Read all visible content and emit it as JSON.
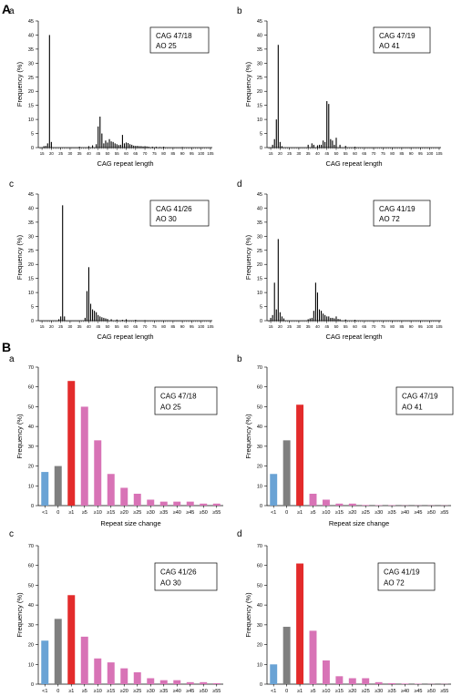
{
  "sections": [
    {
      "label": "A"
    },
    {
      "label": "B"
    }
  ],
  "chart_data": [
    {
      "section": "A",
      "panel": "a",
      "type": "bar",
      "xlabel": "CAG repeat length",
      "ylabel": "Frequency (%)",
      "ylim": [
        0,
        45
      ],
      "yticks": [
        0,
        5,
        10,
        15,
        20,
        25,
        30,
        35,
        40,
        45
      ],
      "xlim": [
        13,
        106
      ],
      "xticks": [
        15,
        20,
        25,
        30,
        35,
        40,
        45,
        50,
        55,
        60,
        65,
        70,
        75,
        80,
        85,
        90,
        95,
        100,
        105
      ],
      "annotation": [
        "CAG 47/18",
        "AO 25"
      ],
      "x": [
        16,
        17,
        18,
        19,
        20,
        35,
        40,
        42,
        44,
        45,
        46,
        47,
        48,
        49,
        50,
        51,
        52,
        53,
        54,
        55,
        56,
        57,
        58,
        59,
        60,
        61,
        62,
        63,
        64,
        65,
        66,
        67,
        68,
        69,
        70,
        71,
        72,
        74,
        76,
        78,
        80,
        90
      ],
      "values": [
        0.5,
        0.6,
        1.5,
        40,
        2,
        0.3,
        0.5,
        0.8,
        1.2,
        7.5,
        11,
        5,
        1.5,
        2.5,
        1.8,
        3,
        2.2,
        2,
        1.5,
        1.2,
        0.9,
        1,
        4.5,
        1.5,
        1.8,
        1.6,
        1.2,
        1,
        0.7,
        0.6,
        0.6,
        0.5,
        0.5,
        0.4,
        0.5,
        0.4,
        0.3,
        0.3,
        0.3,
        0.2,
        0.3,
        0.2
      ]
    },
    {
      "section": "A",
      "panel": "b",
      "type": "bar",
      "xlabel": "CAG repeat length",
      "ylabel": "Frequency (%)",
      "ylim": [
        0,
        45
      ],
      "yticks": [
        0,
        5,
        10,
        15,
        20,
        25,
        30,
        35,
        40,
        45
      ],
      "xlim": [
        13,
        106
      ],
      "xticks": [
        15,
        20,
        25,
        30,
        35,
        40,
        45,
        50,
        55,
        60,
        65,
        70,
        75,
        80,
        85,
        90,
        95,
        100,
        105
      ],
      "annotation": [
        "CAG 47/19",
        "AO 41"
      ],
      "x": [
        16,
        17,
        18,
        19,
        20,
        21,
        35,
        37,
        38,
        40,
        41,
        42,
        43,
        44,
        45,
        46,
        47,
        48,
        49,
        50,
        52,
        55,
        60
      ],
      "values": [
        1,
        3,
        10,
        36.5,
        2,
        0.5,
        1,
        1.5,
        1,
        0.8,
        1,
        1,
        2.5,
        2,
        16.5,
        15.5,
        3,
        2.5,
        1,
        3.5,
        1,
        0.6,
        0.3
      ]
    },
    {
      "section": "A",
      "panel": "c",
      "type": "bar",
      "xlabel": "CAG repeat length",
      "ylabel": "Frequency (%)",
      "ylim": [
        0,
        45
      ],
      "yticks": [
        0,
        5,
        10,
        15,
        20,
        25,
        30,
        35,
        40,
        45
      ],
      "xlim": [
        13,
        106
      ],
      "xticks": [
        15,
        20,
        25,
        30,
        35,
        40,
        45,
        50,
        55,
        60,
        65,
        70,
        75,
        80,
        85,
        90,
        95,
        100,
        105
      ],
      "annotation": [
        "CAG 41/26",
        "AO 30"
      ],
      "x": [
        24,
        25,
        26,
        27,
        38,
        39,
        40,
        41,
        42,
        43,
        44,
        45,
        46,
        47,
        48,
        49,
        50,
        52,
        55,
        58,
        60,
        65,
        70
      ],
      "values": [
        0.5,
        1.5,
        41,
        1.5,
        1,
        10.5,
        19,
        6,
        4,
        3.5,
        3,
        2,
        1.5,
        1.2,
        1,
        0.8,
        0.6,
        0.5,
        0.4,
        0.3,
        0.5,
        0.3,
        0.2
      ]
    },
    {
      "section": "A",
      "panel": "d",
      "type": "bar",
      "xlabel": "CAG repeat length",
      "ylabel": "Frequency (%)",
      "ylim": [
        0,
        45
      ],
      "yticks": [
        0,
        5,
        10,
        15,
        20,
        25,
        30,
        35,
        40,
        45
      ],
      "xlim": [
        13,
        106
      ],
      "xticks": [
        15,
        20,
        25,
        30,
        35,
        40,
        45,
        50,
        55,
        60,
        65,
        70,
        75,
        80,
        85,
        90,
        95,
        100,
        105
      ],
      "annotation": [
        "CAG 41/19",
        "AO 72"
      ],
      "x": [
        15,
        16,
        17,
        18,
        19,
        20,
        21,
        22,
        35,
        36,
        37,
        38,
        39,
        40,
        41,
        42,
        43,
        44,
        45,
        46,
        47,
        48,
        49,
        50,
        51,
        52,
        55,
        60
      ],
      "values": [
        1,
        2,
        13.5,
        4,
        29,
        3,
        1.5,
        0.8,
        0.5,
        0.8,
        1,
        3.5,
        13.5,
        10,
        4,
        3.5,
        2.5,
        2,
        1.5,
        1.5,
        1,
        1,
        0.8,
        1.5,
        0.6,
        0.5,
        0.4,
        0.3
      ]
    },
    {
      "section": "B",
      "panel": "a",
      "type": "bar",
      "xlabel": "Repeat size change",
      "ylabel": "Frequency (%)",
      "ylim": [
        0,
        70
      ],
      "yticks": [
        0,
        10,
        20,
        30,
        40,
        50,
        60,
        70
      ],
      "annotation": [
        "CAG 47/18",
        "AO 25"
      ],
      "categories": [
        "<1",
        "0",
        "≥1",
        "≥5",
        "≥10",
        "≥15",
        "≥20",
        "≥25",
        "≥30",
        "≥35",
        "≥40",
        "≥45",
        "≥50",
        "≥55"
      ],
      "values": [
        17,
        20,
        63,
        50,
        33,
        16,
        9,
        6,
        3,
        2,
        2,
        2,
        1,
        1
      ],
      "colors": [
        "#6aa3d5",
        "#7f7f7f",
        "#e32b2b",
        "#d873b6",
        "#d873b6",
        "#d873b6",
        "#d873b6",
        "#d873b6",
        "#d873b6",
        "#d873b6",
        "#d873b6",
        "#d873b6",
        "#d873b6",
        "#d873b6"
      ]
    },
    {
      "section": "B",
      "panel": "b",
      "type": "bar",
      "xlabel": "Repeat size change",
      "ylabel": "Frequency (%)",
      "ylim": [
        0,
        70
      ],
      "yticks": [
        0,
        10,
        20,
        30,
        40,
        50,
        60,
        70
      ],
      "annotation": [
        "CAG 47/19",
        "AO 41"
      ],
      "categories": [
        "<1",
        "0",
        "≥1",
        "≥5",
        "≥10",
        "≥15",
        "≥20",
        "≥25",
        "≥30",
        "≥35",
        "≥40",
        "≥45",
        "≥50",
        "≥55"
      ],
      "values": [
        16,
        33,
        51,
        6,
        3,
        1,
        1,
        0.3,
        0.2,
        0.2,
        0.1,
        0.1,
        0.1,
        0.1
      ],
      "colors": [
        "#6aa3d5",
        "#7f7f7f",
        "#e32b2b",
        "#d873b6",
        "#d873b6",
        "#d873b6",
        "#d873b6",
        "#d873b6",
        "#d873b6",
        "#d873b6",
        "#d873b6",
        "#d873b6",
        "#d873b6",
        "#d873b6"
      ]
    },
    {
      "section": "B",
      "panel": "c",
      "type": "bar",
      "xlabel": "Repeat size change",
      "ylabel": "Frequency (%)",
      "ylim": [
        0,
        70
      ],
      "yticks": [
        0,
        10,
        20,
        30,
        40,
        50,
        60,
        70
      ],
      "annotation": [
        "CAG 41/26",
        "AO 30"
      ],
      "categories": [
        "<1",
        "0",
        "≥1",
        "≥5",
        "≥10",
        "≥15",
        "≥20",
        "≥25",
        "≥30",
        "≥35",
        "≥40",
        "≥45",
        "≥50",
        "≥55"
      ],
      "values": [
        22,
        33,
        45,
        24,
        13,
        11,
        8,
        6,
        3,
        2,
        2,
        1,
        1,
        0.5
      ],
      "colors": [
        "#6aa3d5",
        "#7f7f7f",
        "#e32b2b",
        "#d873b6",
        "#d873b6",
        "#d873b6",
        "#d873b6",
        "#d873b6",
        "#d873b6",
        "#d873b6",
        "#d873b6",
        "#d873b6",
        "#d873b6",
        "#d873b6"
      ]
    },
    {
      "section": "B",
      "panel": "d",
      "type": "bar",
      "xlabel": "Repeat size change",
      "ylabel": "Frequency (%)",
      "ylim": [
        0,
        70
      ],
      "yticks": [
        0,
        10,
        20,
        30,
        40,
        50,
        60,
        70
      ],
      "annotation": [
        "CAG 41/19",
        "AO 72"
      ],
      "categories": [
        "<1",
        "0",
        "≥1",
        "≥5",
        "≥10",
        "≥15",
        "≥20",
        "≥25",
        "≥30",
        "≥35",
        "≥40",
        "≥45",
        "≥50",
        "≥55"
      ],
      "values": [
        10,
        29,
        61,
        27,
        12,
        4,
        3,
        3,
        1,
        0.5,
        0.3,
        0.2,
        0.1,
        0.1
      ],
      "colors": [
        "#6aa3d5",
        "#7f7f7f",
        "#e32b2b",
        "#d873b6",
        "#d873b6",
        "#d873b6",
        "#d873b6",
        "#d873b6",
        "#d873b6",
        "#d873b6",
        "#d873b6",
        "#d873b6",
        "#d873b6",
        "#d873b6"
      ]
    }
  ]
}
